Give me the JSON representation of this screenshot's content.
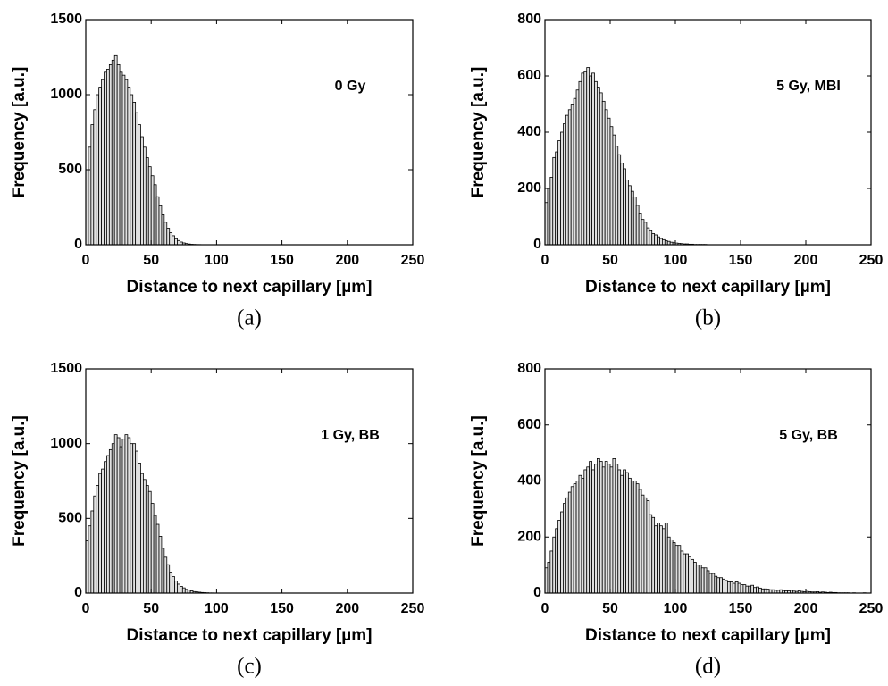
{
  "chart_data": [
    {
      "type": "histogram",
      "xlabel": "Distance to next capillary [µm]",
      "ylabel": "Frequency [a.u.]",
      "annotation": "0 Gy",
      "label": "(a)",
      "color": "#e0e0e0",
      "xlim": [
        0,
        250
      ],
      "ylim": [
        0,
        1500
      ],
      "xticks": [
        0,
        50,
        100,
        150,
        200,
        250
      ],
      "yticks": [
        0,
        500,
        1000,
        1500
      ],
      "bins": [
        0,
        2,
        4,
        6,
        8,
        10,
        12,
        14,
        16,
        18,
        20,
        22,
        24,
        26,
        28,
        30,
        32,
        34,
        36,
        38,
        40,
        42,
        44,
        46,
        48,
        50,
        52,
        54,
        56,
        58,
        60,
        62,
        64,
        66,
        68,
        70,
        72,
        74,
        76,
        78,
        80,
        82,
        84,
        86,
        88,
        90
      ],
      "values": [
        500,
        650,
        800,
        900,
        1000,
        1050,
        1100,
        1150,
        1170,
        1200,
        1230,
        1260,
        1200,
        1150,
        1130,
        1100,
        1050,
        1000,
        950,
        880,
        800,
        720,
        650,
        580,
        520,
        460,
        400,
        320,
        260,
        200,
        150,
        110,
        80,
        60,
        40,
        28,
        18,
        12,
        8,
        5,
        3,
        2,
        1,
        1,
        0
      ]
    },
    {
      "type": "histogram",
      "xlabel": "Distance to next capillary [µm]",
      "ylabel": "Frequency [a.u.]",
      "annotation": "5 Gy, MBI",
      "label": "(b)",
      "color": "#e0e0e0",
      "xlim": [
        0,
        250
      ],
      "ylim": [
        0,
        800
      ],
      "xticks": [
        0,
        50,
        100,
        150,
        200,
        250
      ],
      "yticks": [
        0,
        200,
        400,
        600,
        800
      ],
      "bins": [
        0,
        2,
        4,
        6,
        8,
        10,
        12,
        14,
        16,
        18,
        20,
        22,
        24,
        26,
        28,
        30,
        32,
        34,
        36,
        38,
        40,
        42,
        44,
        46,
        48,
        50,
        52,
        54,
        56,
        58,
        60,
        62,
        64,
        66,
        68,
        70,
        72,
        74,
        76,
        78,
        80,
        82,
        84,
        86,
        88,
        90,
        92,
        94,
        96,
        98,
        100,
        102,
        104,
        106,
        108,
        110,
        112,
        114,
        116,
        118,
        120,
        122,
        124,
        126,
        128,
        130
      ],
      "values": [
        150,
        200,
        240,
        310,
        330,
        370,
        400,
        430,
        460,
        480,
        500,
        520,
        550,
        580,
        610,
        615,
        630,
        600,
        610,
        580,
        560,
        540,
        510,
        480,
        450,
        420,
        390,
        350,
        320,
        290,
        270,
        230,
        210,
        190,
        170,
        140,
        110,
        90,
        80,
        60,
        50,
        40,
        35,
        28,
        22,
        18,
        14,
        12,
        9,
        7,
        6,
        5,
        4,
        3,
        3,
        2,
        2,
        1,
        1,
        1,
        1,
        1,
        0,
        0,
        0
      ]
    },
    {
      "type": "histogram",
      "xlabel": "Distance to next capillary [µm]",
      "ylabel": "Frequency [a.u.]",
      "annotation": "1 Gy, BB",
      "label": "(c)",
      "color": "#e0e0e0",
      "xlim": [
        0,
        250
      ],
      "ylim": [
        0,
        1500
      ],
      "xticks": [
        0,
        50,
        100,
        150,
        200,
        250
      ],
      "yticks": [
        0,
        500,
        1000,
        1500
      ],
      "bins": [
        0,
        2,
        4,
        6,
        8,
        10,
        12,
        14,
        16,
        18,
        20,
        22,
        24,
        26,
        28,
        30,
        32,
        34,
        36,
        38,
        40,
        42,
        44,
        46,
        48,
        50,
        52,
        54,
        56,
        58,
        60,
        62,
        64,
        66,
        68,
        70,
        72,
        74,
        76,
        78,
        80,
        82,
        84,
        86,
        88,
        90,
        92,
        94,
        96,
        98,
        100
      ],
      "values": [
        350,
        450,
        550,
        650,
        720,
        800,
        830,
        880,
        920,
        960,
        1000,
        1060,
        1040,
        980,
        1030,
        1060,
        1040,
        1000,
        1000,
        950,
        870,
        800,
        760,
        720,
        680,
        600,
        520,
        460,
        380,
        300,
        240,
        190,
        140,
        110,
        80,
        60,
        45,
        35,
        25,
        20,
        15,
        10,
        8,
        6,
        4,
        3,
        2,
        1,
        1,
        0
      ]
    },
    {
      "type": "histogram",
      "xlabel": "Distance to next capillary [µm]",
      "ylabel": "Frequency [a.u.]",
      "annotation": "5 Gy, BB",
      "label": "(d)",
      "color": "#e0e0e0",
      "xlim": [
        0,
        250
      ],
      "ylim": [
        0,
        800
      ],
      "xticks": [
        0,
        50,
        100,
        150,
        200,
        250
      ],
      "yticks": [
        0,
        200,
        400,
        600,
        800
      ],
      "bins": [
        0,
        2,
        4,
        6,
        8,
        10,
        12,
        14,
        16,
        18,
        20,
        22,
        24,
        26,
        28,
        30,
        32,
        34,
        36,
        38,
        40,
        42,
        44,
        46,
        48,
        50,
        52,
        54,
        56,
        58,
        60,
        62,
        64,
        66,
        68,
        70,
        72,
        74,
        76,
        78,
        80,
        82,
        84,
        86,
        88,
        90,
        92,
        94,
        96,
        98,
        100,
        102,
        104,
        106,
        108,
        110,
        112,
        114,
        116,
        118,
        120,
        122,
        124,
        126,
        128,
        130,
        132,
        134,
        136,
        138,
        140,
        142,
        144,
        146,
        148,
        150,
        152,
        154,
        156,
        158,
        160,
        162,
        164,
        166,
        168,
        170,
        172,
        174,
        176,
        178,
        180,
        182,
        184,
        186,
        188,
        190,
        192,
        194,
        196,
        198,
        200,
        202,
        204,
        206,
        208,
        210,
        212,
        214,
        216,
        218,
        220,
        222,
        224,
        226,
        228,
        230,
        232,
        234,
        236,
        238,
        240,
        242,
        244,
        246,
        248,
        250
      ],
      "values": [
        90,
        110,
        150,
        200,
        230,
        260,
        290,
        320,
        340,
        360,
        380,
        390,
        400,
        420,
        410,
        440,
        450,
        470,
        440,
        460,
        480,
        470,
        450,
        470,
        460,
        450,
        480,
        460,
        440,
        420,
        440,
        430,
        410,
        400,
        400,
        390,
        370,
        350,
        340,
        330,
        280,
        270,
        240,
        250,
        240,
        230,
        250,
        200,
        190,
        180,
        170,
        170,
        150,
        140,
        140,
        130,
        120,
        110,
        100,
        100,
        90,
        90,
        80,
        70,
        70,
        60,
        55,
        55,
        50,
        45,
        40,
        40,
        35,
        40,
        35,
        30,
        30,
        25,
        25,
        28,
        20,
        22,
        18,
        15,
        15,
        14,
        12,
        12,
        10,
        10,
        12,
        9,
        8,
        8,
        10,
        7,
        6,
        8,
        6,
        5,
        6,
        5,
        4,
        4,
        5,
        3,
        4,
        3,
        2,
        3,
        2,
        2,
        1,
        1,
        1,
        1,
        1,
        0,
        1,
        0,
        0,
        0,
        1,
        0,
        0
      ]
    }
  ]
}
